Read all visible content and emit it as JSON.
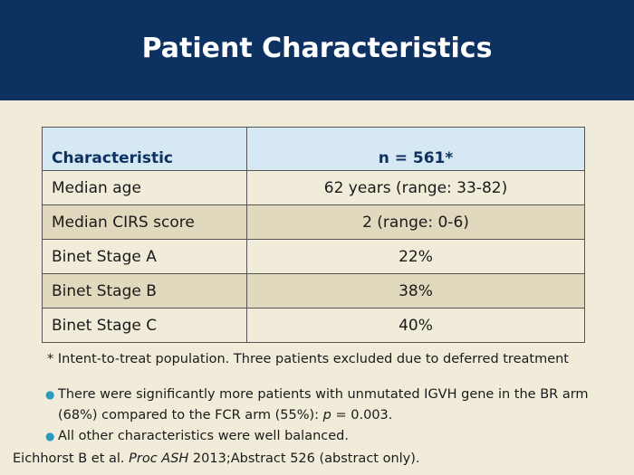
{
  "slide": {
    "title": "Patient Characteristics",
    "colors": {
      "header_bg": "#0d3262",
      "page_bg": "#f1ecd9",
      "table_header_bg": "#d6e8f3",
      "alt_row_bg": "#e1d9be",
      "bullet": "#2a9bbf"
    }
  },
  "table": {
    "headers": [
      "Characteristic",
      "n = 561*"
    ],
    "rows": [
      [
        "Median age",
        "62 years (range: 33-82)"
      ],
      [
        "Median CIRS score",
        "2 (range: 0-6)"
      ],
      [
        "Binet Stage A",
        "22%"
      ],
      [
        "Binet Stage B",
        "38%"
      ],
      [
        "Binet Stage C",
        "40%"
      ]
    ]
  },
  "footnote": "* Intent-to-treat population. Three patients excluded due to deferred treatment",
  "bullets": [
    {
      "pre": "There were significantly more patients with unmutated IGVH gene in the BR arm (68%) compared to the FCR arm (55%): ",
      "italic": "p",
      "post": " = 0.003."
    },
    {
      "pre": "All other characteristics were well balanced.",
      "italic": "",
      "post": ""
    }
  ],
  "citation": {
    "authors": "Eichhorst B et al. ",
    "journal": "Proc ASH",
    "rest": " 2013;Abstract 526 (abstract only)."
  }
}
